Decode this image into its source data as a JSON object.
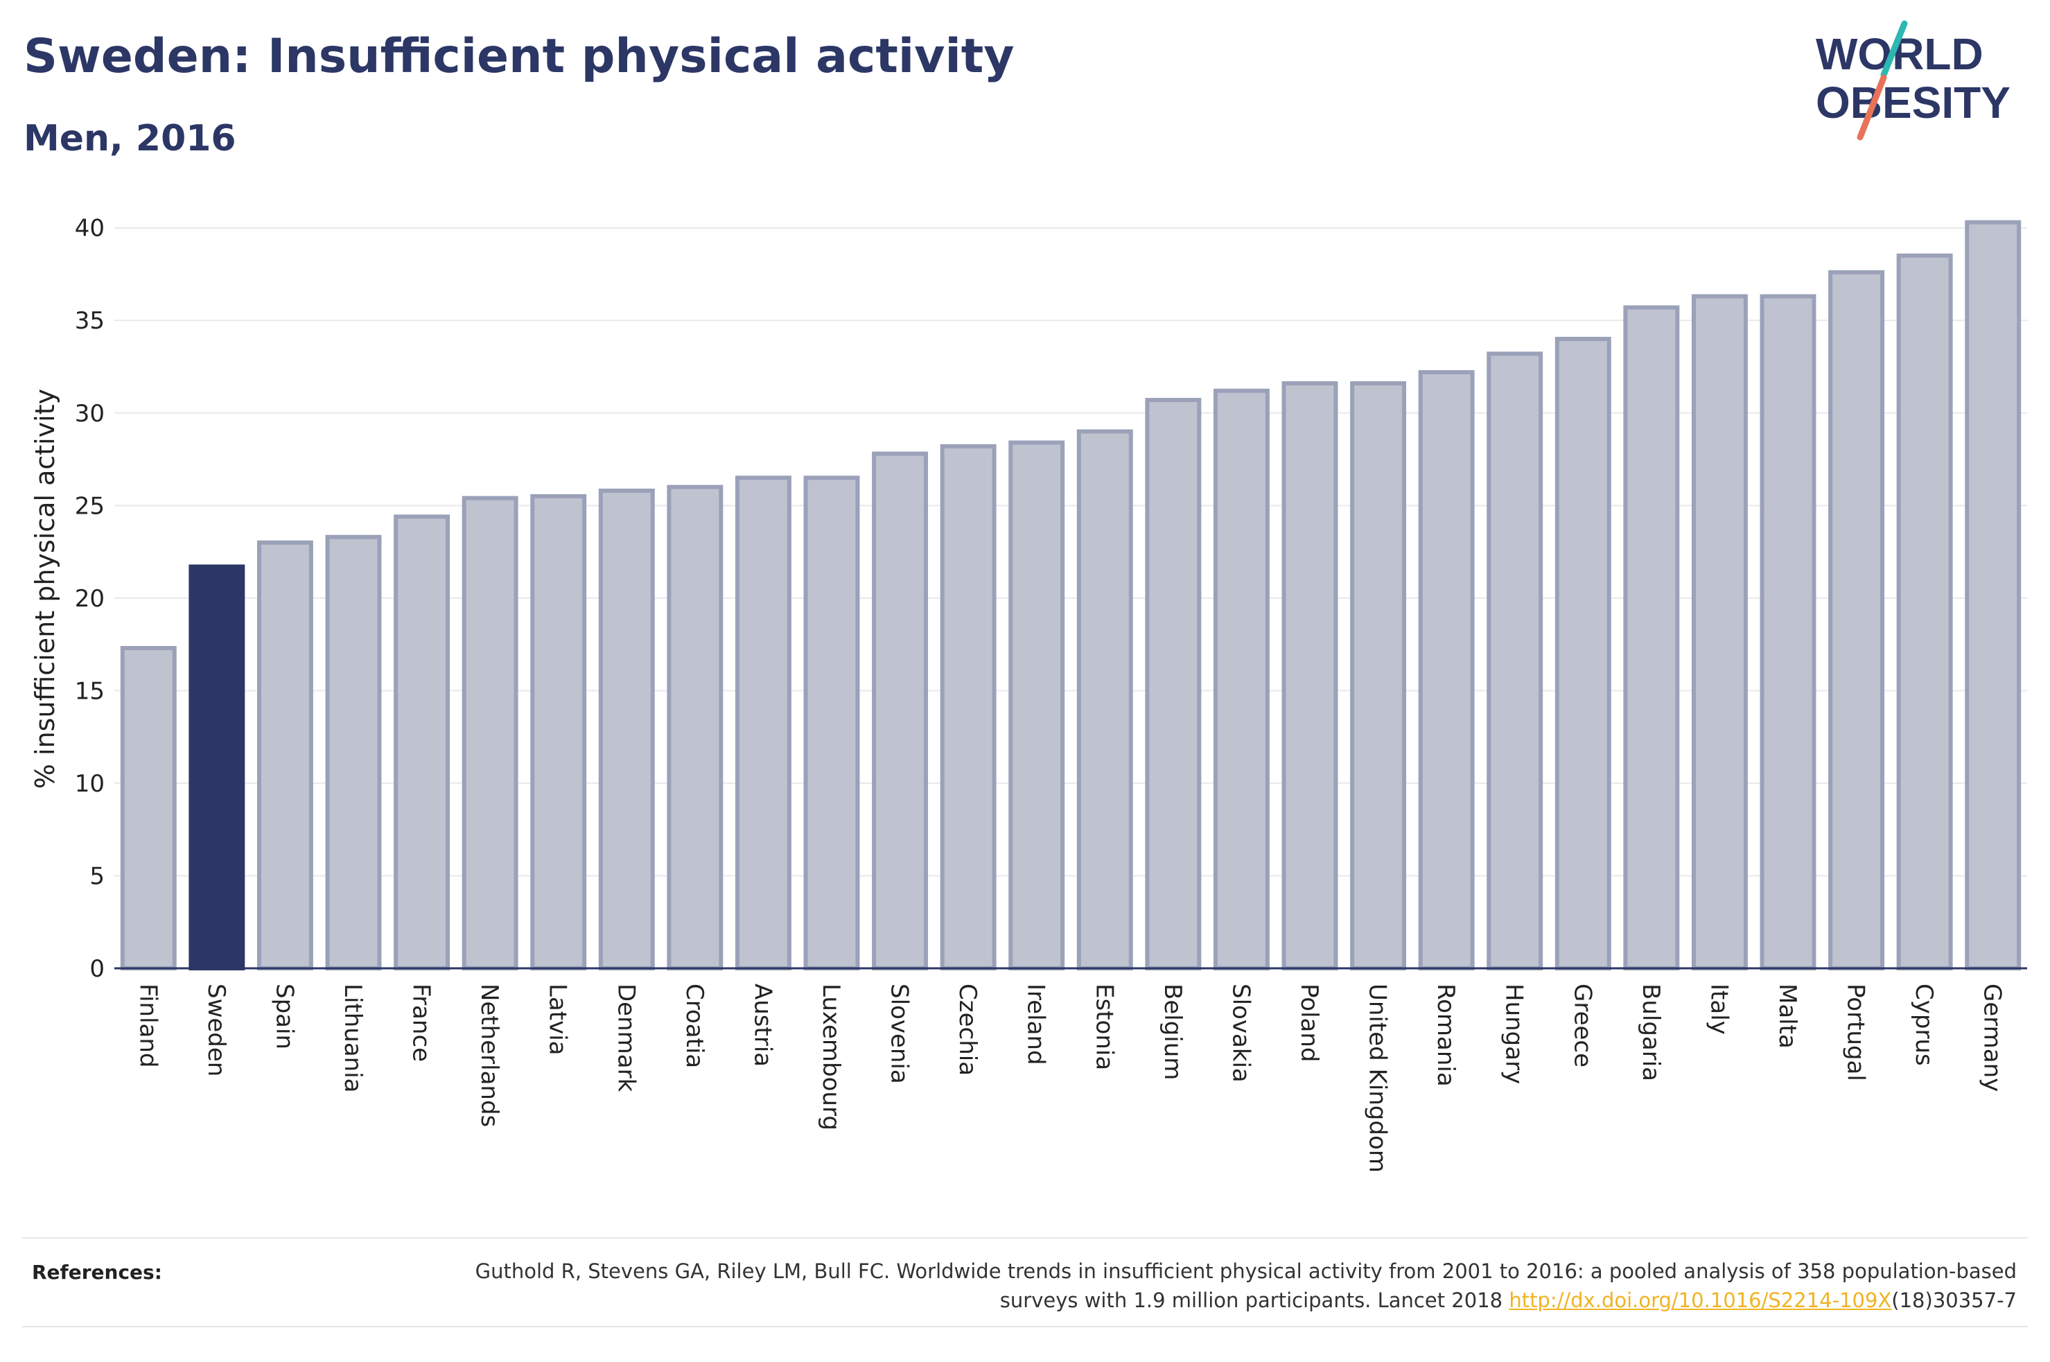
{
  "header": {
    "title": "Sweden: Insufficient physical activity",
    "subtitle": "Men, 2016"
  },
  "logo": {
    "line1": "WORLD",
    "line2": "OBESITY",
    "teal": "#2bb8b1",
    "coral": "#e8735a",
    "navy": "#2c3766"
  },
  "chart_data": {
    "type": "bar",
    "title": "Sweden: Insufficient physical activity",
    "subtitle": "Men, 2016",
    "xlabel": "",
    "ylabel": "% insufficient physical activity",
    "ylim": [
      0,
      41
    ],
    "yticks": [
      0,
      5,
      10,
      15,
      20,
      25,
      30,
      35,
      40
    ],
    "grid": true,
    "highlight": "Sweden",
    "colors": {
      "bar": "#bfc3d0",
      "bar_edge": "#9aa1b8",
      "highlight": "#2c3766"
    },
    "categories": [
      "Finland",
      "Sweden",
      "Spain",
      "Lithuania",
      "France",
      "Netherlands",
      "Latvia",
      "Denmark",
      "Croatia",
      "Austria",
      "Luxembourg",
      "Slovenia",
      "Czechia",
      "Ireland",
      "Estonia",
      "Belgium",
      "Slovakia",
      "Poland",
      "United Kingdom",
      "Romania",
      "Hungary",
      "Greece",
      "Bulgaria",
      "Italy",
      "Malta",
      "Portugal",
      "Cyprus",
      "Germany"
    ],
    "values": [
      17.3,
      21.7,
      23.0,
      23.3,
      24.4,
      25.4,
      25.5,
      25.8,
      26.0,
      26.5,
      26.5,
      27.8,
      28.2,
      28.4,
      29.0,
      30.7,
      31.2,
      31.6,
      31.6,
      32.2,
      33.2,
      34.0,
      35.7,
      36.3,
      36.3,
      37.6,
      38.5,
      40.3
    ]
  },
  "references": {
    "label": "References:",
    "text_before": "Guthold R, Stevens GA, Riley LM, Bull FC. Worldwide trends in insufficient physical activity from 2001 to 2016: a pooled analysis of 358 population-based surveys with 1.9 million participants. Lancet 2018 ",
    "link_text": "http://dx.doi.org/10.1016/S2214-109X",
    "text_after": "(18)30357-7"
  }
}
